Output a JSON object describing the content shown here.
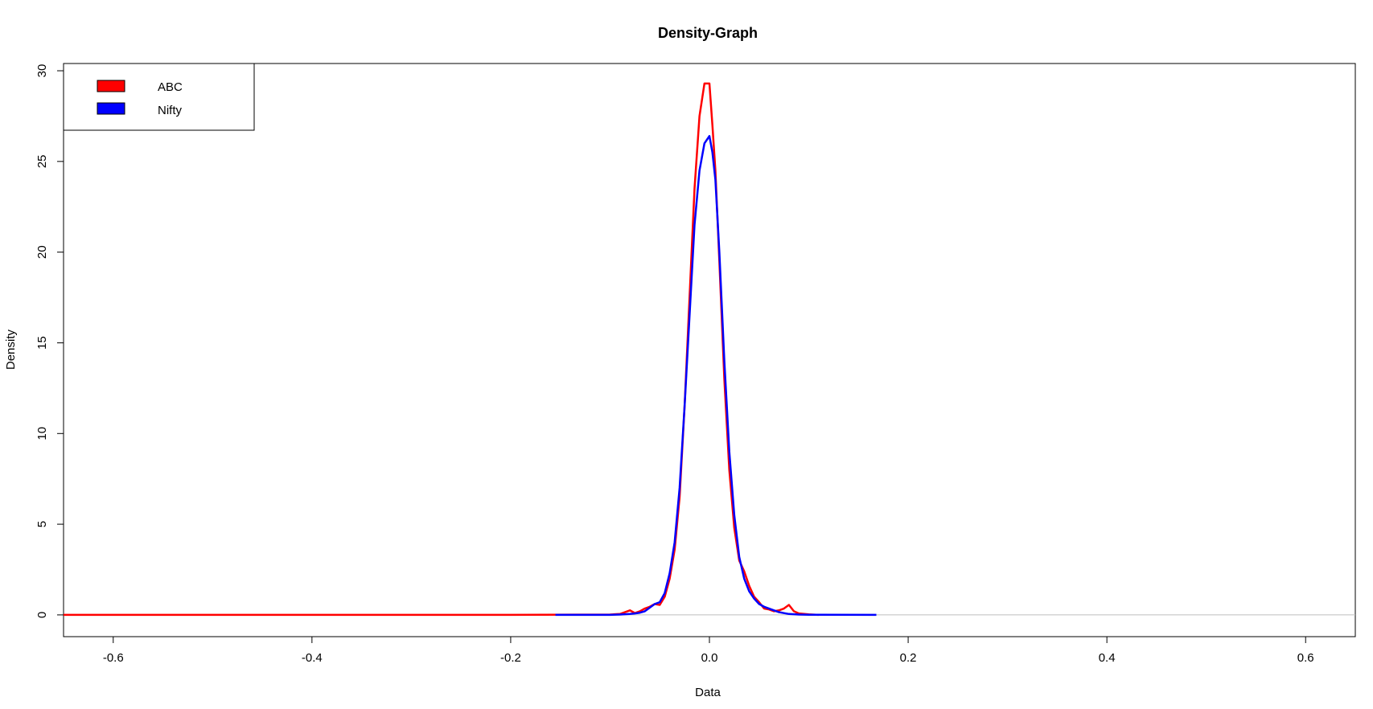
{
  "chart_data": {
    "type": "line",
    "title": "Density-Graph",
    "xlabel": "Data",
    "ylabel": "Density",
    "xlim": [
      -0.65,
      0.65
    ],
    "ylim": [
      -1.2,
      30.4
    ],
    "xticks": [
      -0.6,
      -0.4,
      -0.2,
      0.0,
      0.2,
      0.4,
      0.6
    ],
    "xtick_labels": [
      "-0.6",
      "-0.4",
      "-0.2",
      "0.0",
      "0.2",
      "0.4",
      "0.6"
    ],
    "yticks": [
      0,
      5,
      10,
      15,
      20,
      25,
      30
    ],
    "ytick_labels": [
      "0",
      "5",
      "10",
      "15",
      "20",
      "25",
      "30"
    ],
    "grid": false,
    "baseline": {
      "y": 0,
      "color": "#bebebe"
    },
    "legend": {
      "position": "top-left",
      "entries": [
        "ABC",
        "Nifty"
      ]
    },
    "series": [
      {
        "name": "ABC",
        "color": "#ff0000",
        "x": [
          -0.65,
          -0.2,
          -0.1,
          -0.09,
          -0.085,
          -0.08,
          -0.075,
          -0.07,
          -0.065,
          -0.06,
          -0.055,
          -0.05,
          -0.045,
          -0.04,
          -0.035,
          -0.03,
          -0.025,
          -0.02,
          -0.015,
          -0.01,
          -0.005,
          0.0,
          0.003,
          0.006,
          0.01,
          0.015,
          0.02,
          0.025,
          0.03,
          0.035,
          0.04,
          0.045,
          0.05,
          0.055,
          0.06,
          0.065,
          0.07,
          0.075,
          0.08,
          0.085,
          0.09,
          0.1,
          0.11
        ],
        "y": [
          0,
          0,
          0.02,
          0.05,
          0.15,
          0.25,
          0.1,
          0.2,
          0.35,
          0.45,
          0.6,
          0.55,
          1.0,
          2.0,
          3.6,
          6.5,
          11.5,
          17.5,
          23.5,
          27.5,
          29.3,
          29.3,
          27.0,
          24.5,
          19.5,
          13.0,
          8.0,
          4.8,
          3.0,
          2.4,
          1.6,
          1.0,
          0.7,
          0.35,
          0.3,
          0.2,
          0.25,
          0.35,
          0.55,
          0.2,
          0.08,
          0.03,
          0
        ]
      },
      {
        "name": "Nifty",
        "color": "#0000ff",
        "x": [
          -0.155,
          -0.1,
          -0.09,
          -0.08,
          -0.075,
          -0.07,
          -0.065,
          -0.06,
          -0.055,
          -0.05,
          -0.045,
          -0.04,
          -0.035,
          -0.03,
          -0.025,
          -0.02,
          -0.015,
          -0.01,
          -0.005,
          0.0,
          0.003,
          0.006,
          0.01,
          0.015,
          0.02,
          0.025,
          0.03,
          0.035,
          0.04,
          0.045,
          0.05,
          0.055,
          0.06,
          0.065,
          0.07,
          0.075,
          0.08,
          0.09,
          0.1,
          0.11,
          0.168
        ],
        "y": [
          0,
          0,
          0.02,
          0.05,
          0.08,
          0.12,
          0.2,
          0.4,
          0.6,
          0.7,
          1.2,
          2.3,
          4.0,
          7.0,
          11.5,
          16.5,
          21.5,
          24.5,
          26.0,
          26.4,
          25.5,
          24.0,
          20.0,
          14.0,
          9.0,
          5.5,
          3.2,
          2.0,
          1.3,
          0.9,
          0.6,
          0.45,
          0.35,
          0.25,
          0.15,
          0.1,
          0.05,
          0.02,
          0.01,
          0.005,
          0
        ]
      }
    ]
  }
}
